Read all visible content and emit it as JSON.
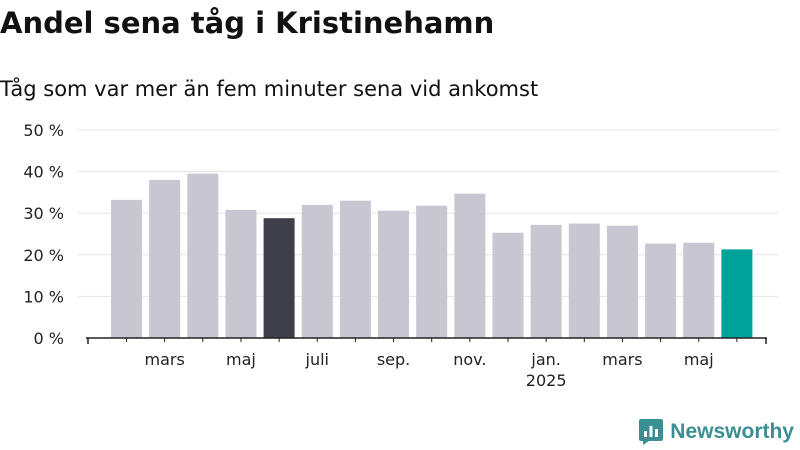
{
  "title": "Andel sena tåg i Kristinehamn",
  "subtitle": "Tåg som var mer än fem minuter sena vid ankomst",
  "brand": {
    "name": "Newsworthy",
    "icon": "newsworthy-logo-icon",
    "color": "#3a8f93"
  },
  "colors": {
    "bar": "#c7c6d1",
    "highlight": "#3f3e4b",
    "latest": "#00a39a",
    "grid": "#e3e3e3",
    "axis": "#222222"
  },
  "chart_data": {
    "type": "bar",
    "x": [
      "2024-02",
      "2024-03",
      "2024-04",
      "2024-05",
      "2024-06",
      "2024-07",
      "2024-08",
      "2024-09",
      "2024-10",
      "2024-11",
      "2024-12",
      "2025-01",
      "2025-02",
      "2025-03",
      "2025-04",
      "2025-05",
      "2025-06"
    ],
    "values": [
      33.2,
      38.0,
      39.5,
      30.8,
      28.8,
      32.0,
      33.0,
      30.6,
      31.8,
      34.7,
      25.3,
      27.2,
      27.5,
      27.0,
      22.7,
      22.9,
      21.3
    ],
    "highlight_index": 4,
    "latest_index": 16,
    "ylim": [
      0,
      50
    ],
    "yticks": [
      0,
      10,
      20,
      30,
      40,
      50
    ],
    "ytick_labels": [
      "0 %",
      "10 %",
      "20 %",
      "30 %",
      "40 %",
      "50 %"
    ],
    "xtick_labels": [
      {
        "at": "2024-03",
        "label": "mars"
      },
      {
        "at": "2024-05",
        "label": "maj"
      },
      {
        "at": "2024-07",
        "label": "juli"
      },
      {
        "at": "2024-09",
        "label": "sep."
      },
      {
        "at": "2024-11",
        "label": "nov."
      },
      {
        "at": "2025-01",
        "label": "jan.",
        "sublabel": "2025"
      },
      {
        "at": "2025-03",
        "label": "mars"
      },
      {
        "at": "2025-05",
        "label": "maj"
      }
    ],
    "grid": true,
    "legend": "none"
  }
}
